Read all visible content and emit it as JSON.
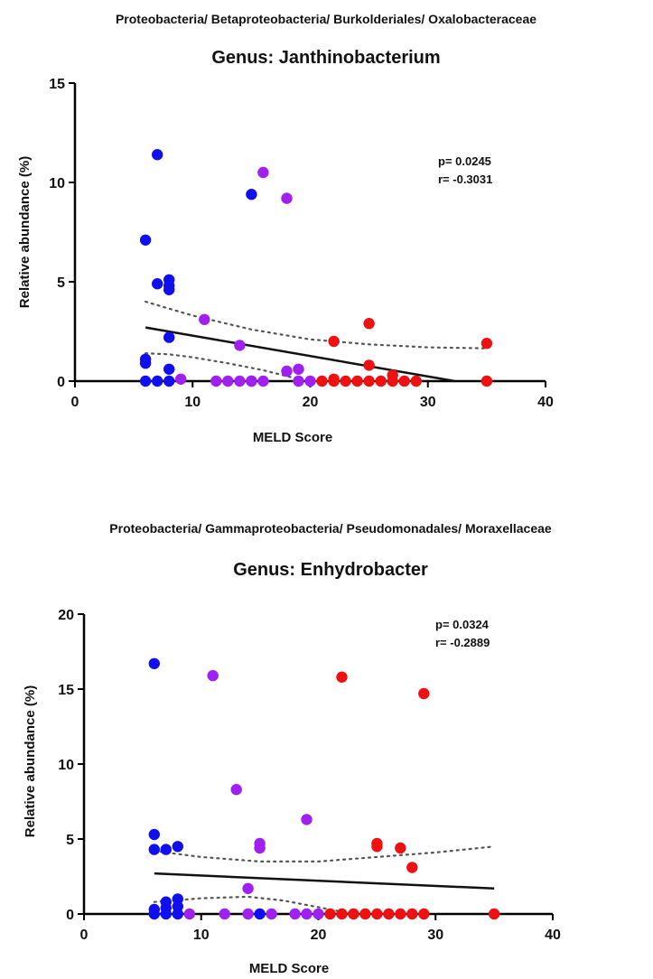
{
  "chart_data": [
    {
      "type": "scatter",
      "taxonomy": "Proteobacteria/ Betaproteobacteria/ Burkolderiales/ Oxalobacteraceae",
      "title": "Genus: Janthinobacterium",
      "xlabel": "MELD Score",
      "ylabel": "Relative abundance (%)",
      "xlim": [
        0,
        40
      ],
      "ylim": [
        0,
        15
      ],
      "xticks": [
        0,
        10,
        20,
        30,
        40
      ],
      "yticks": [
        0,
        5,
        10,
        15
      ],
      "stats": {
        "p": "p= 0.0245",
        "r": "r= -0.3031"
      },
      "series": [
        {
          "color": "#1010ee",
          "points": [
            [
              6,
              0
            ],
            [
              6,
              0.9
            ],
            [
              6,
              1.1
            ],
            [
              6,
              7.1
            ],
            [
              7,
              0
            ],
            [
              7,
              4.9
            ],
            [
              7,
              11.4
            ],
            [
              8,
              0
            ],
            [
              8,
              0.6
            ],
            [
              8,
              2.2
            ],
            [
              8,
              4.6
            ],
            [
              8,
              4.8
            ],
            [
              8,
              5.1
            ],
            [
              15,
              9.4
            ],
            [
              15,
              0
            ]
          ]
        },
        {
          "color": "#a020f0",
          "points": [
            [
              9,
              0.1
            ],
            [
              11,
              3.1
            ],
            [
              12,
              0
            ],
            [
              13,
              0
            ],
            [
              14,
              0
            ],
            [
              14,
              1.8
            ],
            [
              15,
              0
            ],
            [
              16,
              0
            ],
            [
              16,
              10.5
            ],
            [
              18,
              0.5
            ],
            [
              18,
              9.2
            ],
            [
              19,
              0
            ],
            [
              19,
              0.6
            ],
            [
              20,
              0
            ]
          ]
        },
        {
          "color": "#ee1111",
          "points": [
            [
              21,
              0
            ],
            [
              22,
              0
            ],
            [
              22,
              0.1
            ],
            [
              22,
              2.0
            ],
            [
              23,
              0
            ],
            [
              24,
              0
            ],
            [
              25,
              0
            ],
            [
              25,
              0.8
            ],
            [
              25,
              2.9
            ],
            [
              26,
              0
            ],
            [
              27,
              0
            ],
            [
              27,
              0.3
            ],
            [
              28,
              0
            ],
            [
              29,
              0
            ],
            [
              35,
              0
            ],
            [
              35,
              1.9
            ]
          ]
        }
      ],
      "fit_line": {
        "x": [
          6,
          32.3
        ],
        "y": [
          2.7,
          0
        ]
      },
      "ci_upper": {
        "x": [
          6,
          10,
          15,
          20,
          25,
          30,
          35
        ],
        "y": [
          4.0,
          3.3,
          2.6,
          2.1,
          1.85,
          1.7,
          1.65
        ]
      },
      "ci_lower": {
        "x": [
          6,
          8,
          10,
          13,
          16,
          18,
          19.5,
          20.5
        ],
        "y": [
          1.4,
          1.35,
          1.2,
          0.9,
          0.55,
          0.25,
          0.05,
          0
        ]
      }
    },
    {
      "type": "scatter",
      "taxonomy": "Proteobacteria/ Gammaproteobacteria/ Pseudomonadales/ Moraxellaceae",
      "title": "Genus: Enhydrobacter",
      "xlabel": "MELD Score",
      "ylabel": "Relative abundance (%)",
      "xlim": [
        0,
        40
      ],
      "ylim": [
        0,
        20
      ],
      "xticks": [
        0,
        10,
        20,
        30,
        40
      ],
      "yticks": [
        0,
        5,
        10,
        15,
        20
      ],
      "stats": {
        "p": "p= 0.0324",
        "r": "r= -0.2889"
      },
      "series": [
        {
          "color": "#1010ee",
          "points": [
            [
              6,
              0
            ],
            [
              6,
              0.3
            ],
            [
              6,
              4.3
            ],
            [
              6,
              5.3
            ],
            [
              6,
              16.7
            ],
            [
              7,
              0
            ],
            [
              7,
              0.4
            ],
            [
              7,
              0.8
            ],
            [
              7,
              4.3
            ],
            [
              8,
              0
            ],
            [
              8,
              0.5
            ],
            [
              8,
              1.0
            ],
            [
              8,
              4.5
            ],
            [
              15,
              0
            ]
          ]
        },
        {
          "color": "#a020f0",
          "points": [
            [
              9,
              0
            ],
            [
              11,
              15.9
            ],
            [
              12,
              0
            ],
            [
              13,
              8.3
            ],
            [
              14,
              0
            ],
            [
              14,
              1.7
            ],
            [
              15,
              4.4
            ],
            [
              15,
              4.7
            ],
            [
              16,
              0
            ],
            [
              18,
              0
            ],
            [
              19,
              0
            ],
            [
              19,
              6.3
            ],
            [
              20,
              0
            ]
          ]
        },
        {
          "color": "#ee1111",
          "points": [
            [
              21,
              0
            ],
            [
              22,
              0
            ],
            [
              22,
              15.8
            ],
            [
              23,
              0
            ],
            [
              24,
              0
            ],
            [
              25,
              0
            ],
            [
              25,
              4.5
            ],
            [
              25,
              4.7
            ],
            [
              26,
              0
            ],
            [
              27,
              0
            ],
            [
              27,
              4.4
            ],
            [
              28,
              0
            ],
            [
              28,
              3.1
            ],
            [
              29,
              0
            ],
            [
              29,
              14.7
            ],
            [
              35,
              0
            ]
          ]
        }
      ],
      "fit_line": {
        "x": [
          6,
          35
        ],
        "y": [
          2.7,
          1.7
        ]
      },
      "ci_upper": {
        "x": [
          6,
          10,
          15,
          20,
          25,
          30,
          35
        ],
        "y": [
          4.2,
          3.8,
          3.5,
          3.5,
          3.8,
          4.1,
          4.5
        ]
      },
      "ci_lower": {
        "x": [
          6,
          10,
          14,
          17,
          20,
          22,
          24
        ],
        "y": [
          0.8,
          1.05,
          1.15,
          0.9,
          0.45,
          0.15,
          0
        ]
      }
    }
  ]
}
